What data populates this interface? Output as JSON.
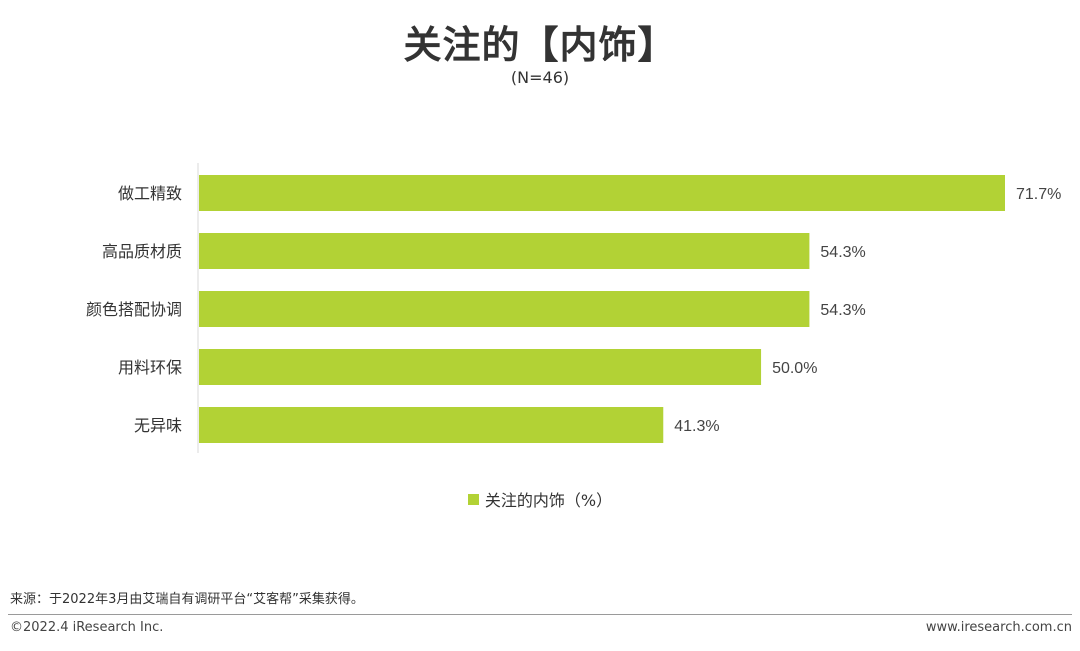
{
  "title": "关注的【内饰】",
  "subtitle": "(N=46)",
  "colors": {
    "bar": "#b2d235",
    "axis": "#d9d9d9",
    "text": "#333333"
  },
  "chart_data": {
    "type": "bar",
    "orientation": "horizontal",
    "categories": [
      "做工精致",
      "高品质材质",
      "颜色搭配协调",
      "用料环保",
      "无异味"
    ],
    "series": [
      {
        "name": "关注的内饰（%）",
        "values": [
          71.7,
          54.3,
          54.3,
          50.0,
          41.3
        ]
      }
    ],
    "value_labels": [
      "71.7%",
      "54.3%",
      "54.3%",
      "50.0%",
      "41.3%"
    ],
    "xlim": [
      0,
      71.7
    ],
    "grid": false,
    "legend_position": "bottom-center"
  },
  "footer": {
    "source": "来源：于2022年3月由艾瑞自有调研平台“艾客帮”采集获得。",
    "copyright": "©2022.4 iResearch Inc.",
    "website": "www.iresearch.com.cn"
  }
}
